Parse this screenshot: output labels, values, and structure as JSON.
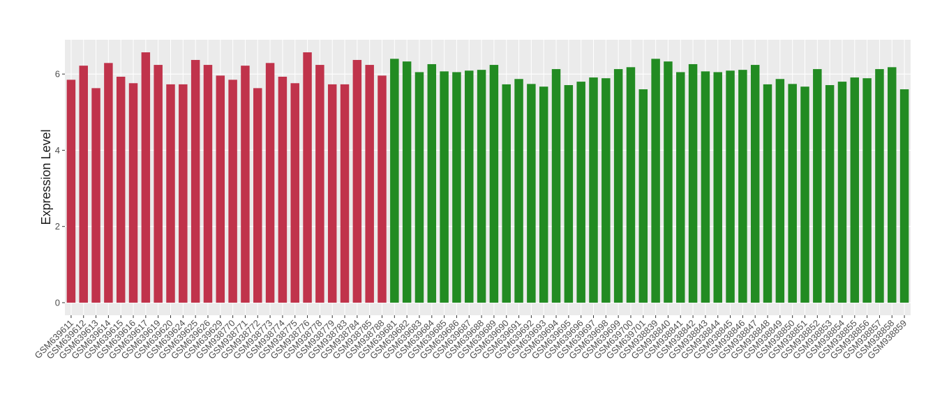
{
  "chart_data": {
    "type": "bar",
    "y_label": "Expression Level",
    "categories": [
      "GSM639611",
      "GSM639612",
      "GSM639613",
      "GSM639614",
      "GSM639615",
      "GSM639616",
      "GSM639617",
      "GSM639619",
      "GSM639620",
      "GSM639624",
      "GSM639625",
      "GSM639626",
      "GSM639629",
      "GSM938770",
      "GSM938771",
      "GSM938772",
      "GSM938773",
      "GSM938774",
      "GSM938775",
      "GSM938776",
      "GSM938778",
      "GSM938779",
      "GSM938783",
      "GSM938784",
      "GSM938785",
      "GSM938788",
      "GSM639681",
      "GSM639682",
      "GSM639683",
      "GSM639684",
      "GSM639685",
      "GSM639686",
      "GSM639687",
      "GSM639688",
      "GSM639689",
      "GSM639690",
      "GSM639691",
      "GSM639692",
      "GSM639693",
      "GSM639694",
      "GSM639695",
      "GSM639696",
      "GSM639697",
      "GSM639698",
      "GSM639699",
      "GSM639700",
      "GSM639701",
      "GSM938839",
      "GSM938840",
      "GSM938841",
      "GSM938842",
      "GSM938843",
      "GSM938844",
      "GSM938845",
      "GSM938846",
      "GSM938847",
      "GSM938848",
      "GSM938849",
      "GSM938850",
      "GSM938851",
      "GSM938852",
      "GSM938853",
      "GSM938854",
      "GSM938855",
      "GSM938856",
      "GSM938857",
      "GSM938858",
      "GSM938859"
    ],
    "values": [
      5.85,
      6.22,
      5.63,
      6.29,
      5.93,
      5.76,
      6.57,
      6.24,
      5.73,
      5.73,
      6.37,
      6.24,
      5.96,
      5.85,
      6.22,
      5.63,
      6.29,
      5.93,
      5.76,
      6.57,
      6.24,
      5.73,
      5.73,
      6.37,
      6.24,
      5.96,
      6.4,
      6.33,
      6.05,
      6.26,
      6.07,
      6.05,
      6.09,
      6.11,
      6.24,
      5.73,
      5.87,
      5.74,
      5.67,
      6.13,
      5.71,
      5.8,
      5.91,
      5.89,
      6.13,
      6.18,
      5.6,
      6.4,
      6.33,
      6.05,
      6.26,
      6.07,
      6.05,
      6.09,
      6.11,
      6.24,
      5.73,
      5.87,
      5.74,
      5.67,
      6.13,
      5.71,
      5.8,
      5.91,
      5.89,
      6.13,
      6.18,
      5.6
    ],
    "colors": [
      "#c0334b",
      "#c0334b",
      "#c0334b",
      "#c0334b",
      "#c0334b",
      "#c0334b",
      "#c0334b",
      "#c0334b",
      "#c0334b",
      "#c0334b",
      "#c0334b",
      "#c0334b",
      "#c0334b",
      "#c0334b",
      "#c0334b",
      "#c0334b",
      "#c0334b",
      "#c0334b",
      "#c0334b",
      "#c0334b",
      "#c0334b",
      "#c0334b",
      "#c0334b",
      "#c0334b",
      "#c0334b",
      "#c0334b",
      "#228b22",
      "#228b22",
      "#228b22",
      "#228b22",
      "#228b22",
      "#228b22",
      "#228b22",
      "#228b22",
      "#228b22",
      "#228b22",
      "#228b22",
      "#228b22",
      "#228b22",
      "#228b22",
      "#228b22",
      "#228b22",
      "#228b22",
      "#228b22",
      "#228b22",
      "#228b22",
      "#228b22",
      "#228b22",
      "#228b22",
      "#228b22",
      "#228b22",
      "#228b22",
      "#228b22",
      "#228b22",
      "#228b22",
      "#228b22",
      "#228b22",
      "#228b22",
      "#228b22",
      "#228b22",
      "#228b22",
      "#228b22",
      "#228b22",
      "#228b22",
      "#228b22",
      "#228b22",
      "#228b22",
      "#228b22"
    ],
    "ylim": [
      -0.33,
      6.9
    ],
    "yticks": [
      0,
      2,
      4,
      6
    ],
    "grid": true
  }
}
